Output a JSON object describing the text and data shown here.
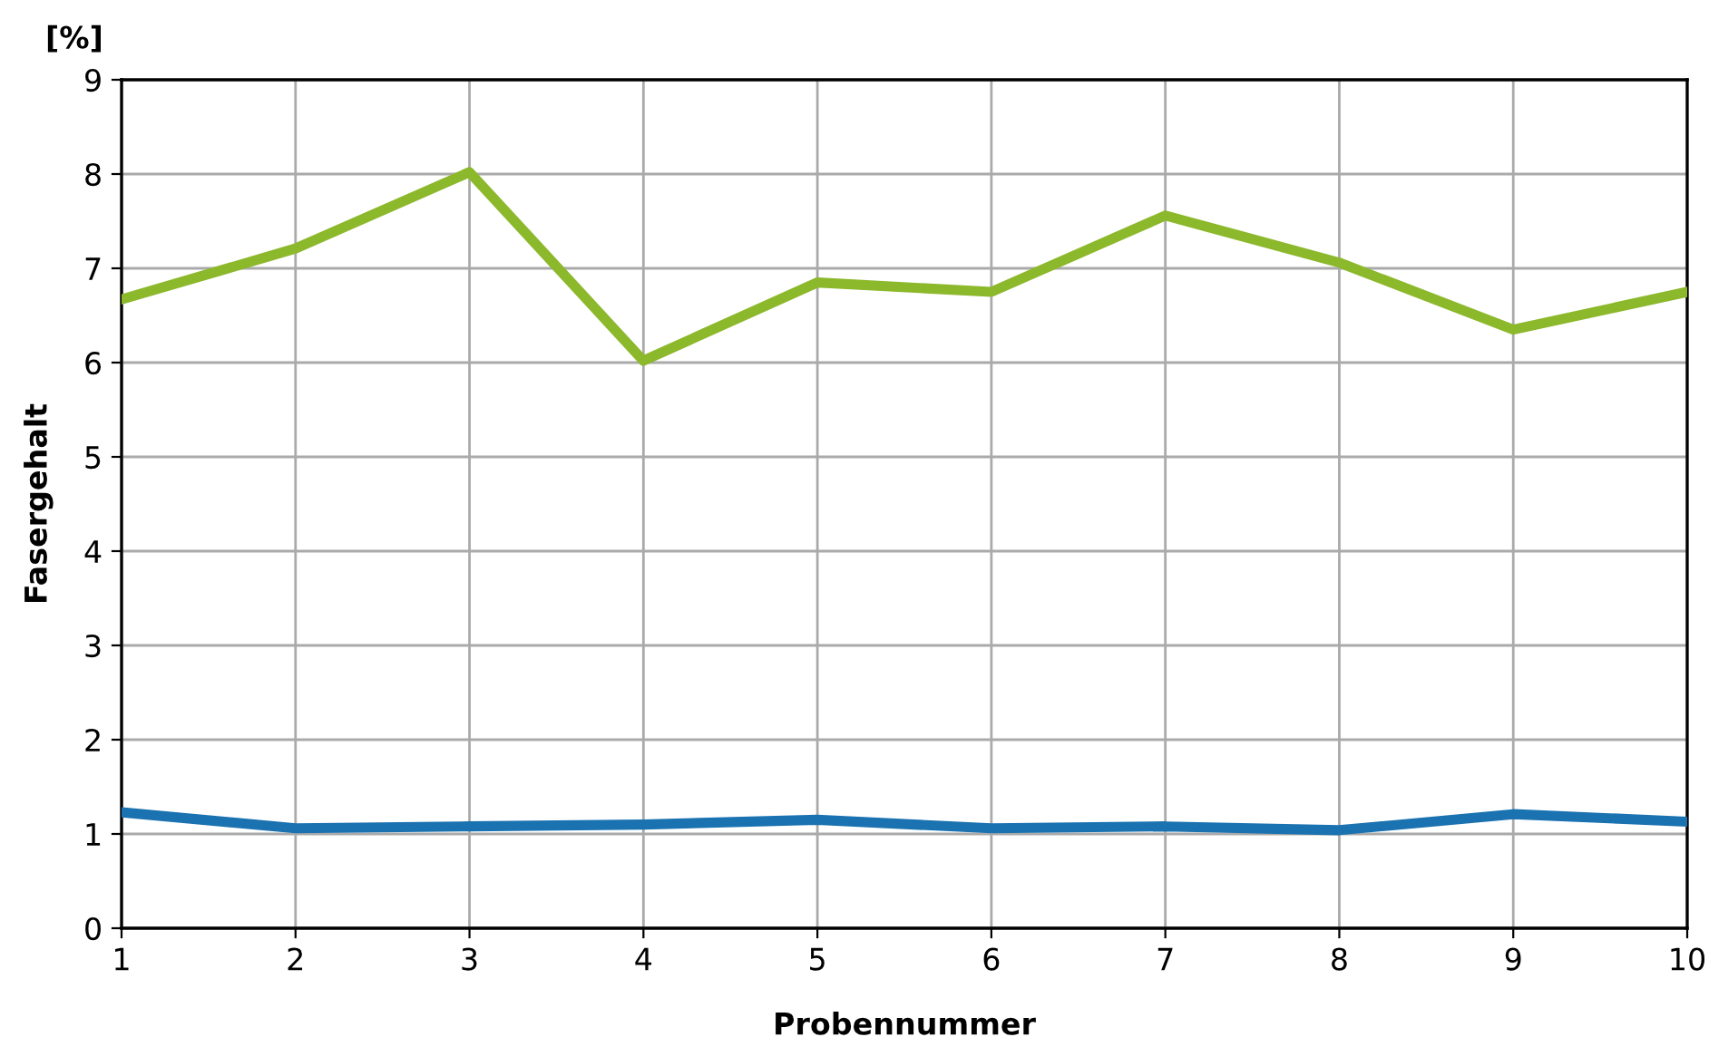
{
  "chart_data": {
    "type": "line",
    "xlabel": "Probennummer",
    "ylabel": "Fasergehalt",
    "annotations": [
      "[%]"
    ],
    "x": [
      1,
      2,
      3,
      4,
      5,
      6,
      7,
      8,
      9,
      10
    ],
    "series": [
      {
        "color": "#8cb82c",
        "values": [
          6.67,
          7.21,
          8.02,
          6.02,
          6.85,
          6.75,
          7.56,
          7.06,
          6.35,
          6.75
        ]
      },
      {
        "color": "#1a72b0",
        "values": [
          1.23,
          1.06,
          1.08,
          1.1,
          1.15,
          1.06,
          1.08,
          1.04,
          1.21,
          1.13
        ]
      }
    ],
    "xlim": [
      1,
      10
    ],
    "xticks": [
      1,
      2,
      3,
      4,
      5,
      6,
      7,
      8,
      9,
      10
    ],
    "ylim": [
      0,
      9
    ],
    "yticks": [
      0,
      1,
      2,
      3,
      4,
      5,
      6,
      7,
      8,
      9
    ],
    "grid": true,
    "marker": "none",
    "line_style": "solid"
  }
}
